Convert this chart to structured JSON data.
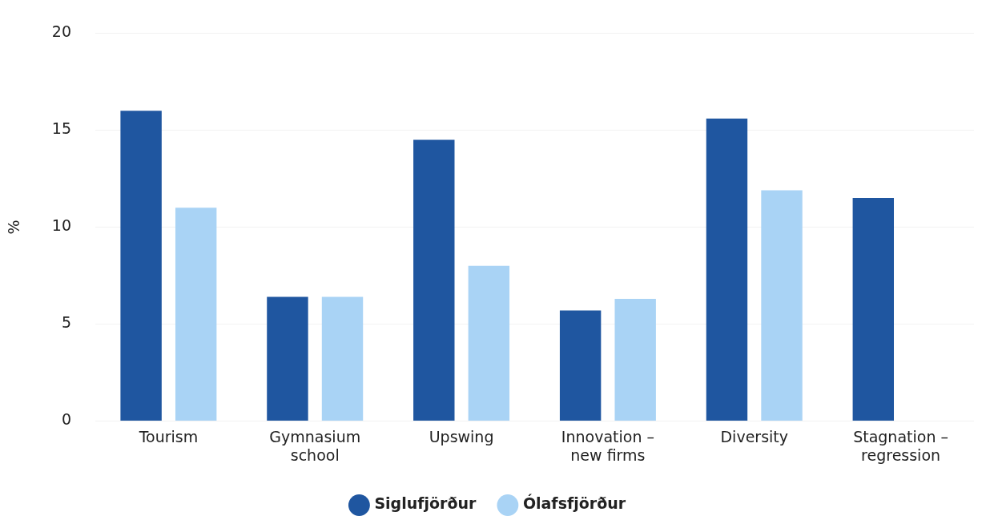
{
  "chart_data": {
    "type": "bar",
    "ylabel": "%",
    "categories": [
      "Tourism",
      "Gymnasium school",
      "Upswing",
      "Innovation – new firms",
      "Diversity",
      "Stagnation – regression"
    ],
    "series": [
      {
        "name": "Siglufjörður",
        "color": "#1f56a0",
        "values": [
          16,
          6.4,
          14.5,
          5.7,
          15.6,
          11.5
        ]
      },
      {
        "name": "Ólafsfjörður",
        "color": "#a9d3f5",
        "values": [
          11,
          6.4,
          8,
          6.3,
          11.9,
          null
        ]
      }
    ],
    "ylim": [
      0,
      20
    ],
    "yticks": [
      0,
      5,
      10,
      15,
      20
    ],
    "grid": "y",
    "legend": "bottom"
  }
}
